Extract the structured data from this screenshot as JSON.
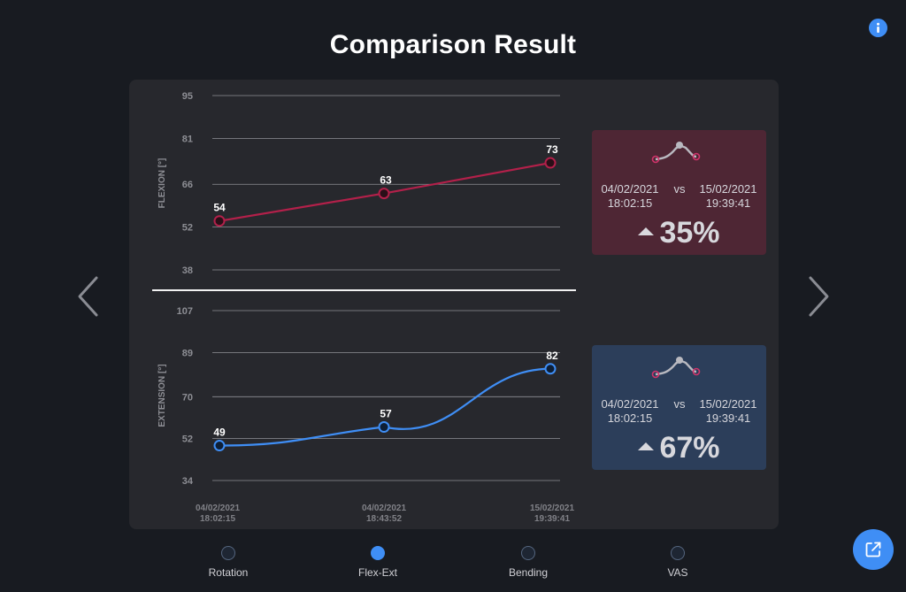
{
  "title": "Comparison Result",
  "icons": {
    "info": "info-icon",
    "prev": "chevron-left-icon",
    "next": "chevron-right-icon",
    "share": "share-external-icon"
  },
  "colors": {
    "flexion": "#b3204a",
    "extension": "#3f8ef5",
    "accent": "#3f8ef5"
  },
  "chart_data": [
    {
      "type": "line",
      "ylabel": "FLEXION [°]",
      "y_ticks": [
        "95",
        "81",
        "66",
        "52",
        "38"
      ],
      "ylim": [
        38,
        95
      ],
      "x": [
        "04/02/2021 18:02:15",
        "04/02/2021 18:43:52",
        "15/02/2021 19:39:41"
      ],
      "values": [
        54,
        63,
        73
      ],
      "data_labels": [
        "54",
        "63",
        "73"
      ],
      "grid": true
    },
    {
      "type": "line",
      "ylabel": "EXTENSION [°]",
      "y_ticks": [
        "107",
        "89",
        "70",
        "52",
        "34"
      ],
      "ylim": [
        34,
        107
      ],
      "x": [
        "04/02/2021 18:02:15",
        "04/02/2021 18:43:52",
        "15/02/2021 19:39:41"
      ],
      "x_tick_labels": [
        [
          "04/02/2021",
          "18:02:15"
        ],
        [
          "04/02/2021",
          "18:43:52"
        ],
        [
          "15/02/2021",
          "19:39:41"
        ]
      ],
      "values": [
        49,
        57,
        82
      ],
      "data_labels": [
        "49",
        "57",
        "82"
      ],
      "grid": true
    }
  ],
  "cards": {
    "flexion": {
      "date1": "04/02/2021",
      "time1": "18:02:15",
      "vs": "vs",
      "date2": "15/02/2021",
      "time2": "19:39:41",
      "percent": "35%",
      "trend": "up"
    },
    "extension": {
      "date1": "04/02/2021",
      "time1": "18:02:15",
      "vs": "vs",
      "date2": "15/02/2021",
      "time2": "19:39:41",
      "percent": "67%",
      "trend": "up"
    }
  },
  "tabs": [
    {
      "label": "Rotation",
      "active": false
    },
    {
      "label": "Flex-Ext",
      "active": true
    },
    {
      "label": "Bending",
      "active": false
    },
    {
      "label": "VAS",
      "active": false
    }
  ]
}
